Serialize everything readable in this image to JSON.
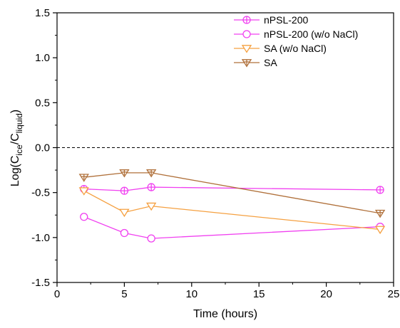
{
  "chart_data": {
    "type": "line",
    "title": "",
    "xlabel": "Time (hours)",
    "ylabel": {
      "prefix": "Log(C",
      "sub1": "ice",
      "mid": "/C",
      "sub2": "liquid",
      "suffix": ")"
    },
    "xlim": [
      0,
      25
    ],
    "ylim": [
      -1.5,
      1.5
    ],
    "xticks": [
      0,
      5,
      10,
      15,
      20,
      25
    ],
    "yticks": [
      -1.5,
      -1.0,
      -0.5,
      0.0,
      0.5,
      1.0,
      1.5
    ],
    "xtick_labels": [
      "0",
      "5",
      "10",
      "15",
      "20",
      "25"
    ],
    "ytick_labels": [
      "-1.5",
      "-1.0",
      "-0.5",
      "0.0",
      "0.5",
      "1.0",
      "1.5"
    ],
    "reference_line": {
      "y": 0.0,
      "style": "dashed"
    },
    "grid": false,
    "legend_position": "top-right",
    "series": [
      {
        "name": "nPSL-200",
        "x": [
          2,
          5,
          7,
          24
        ],
        "y": [
          -0.46,
          -0.48,
          -0.44,
          -0.47
        ],
        "color": "#f040f0",
        "marker": "circle-plus"
      },
      {
        "name": "nPSL-200 (w/o NaCl)",
        "x": [
          2,
          5,
          7,
          24
        ],
        "y": [
          -0.77,
          -0.95,
          -1.01,
          -0.88
        ],
        "color": "#f040f0",
        "marker": "circle"
      },
      {
        "name": "SA (w/o NaCl)",
        "x": [
          2,
          5,
          7,
          24
        ],
        "y": [
          -0.48,
          -0.72,
          -0.65,
          -0.91
        ],
        "color": "#f5a040",
        "marker": "triangle-down"
      },
      {
        "name": "SA",
        "x": [
          2,
          5,
          7,
          24
        ],
        "y": [
          -0.33,
          -0.28,
          -0.28,
          -0.73
        ],
        "color": "#b0703a",
        "marker": "triangle-down-plus"
      }
    ]
  }
}
